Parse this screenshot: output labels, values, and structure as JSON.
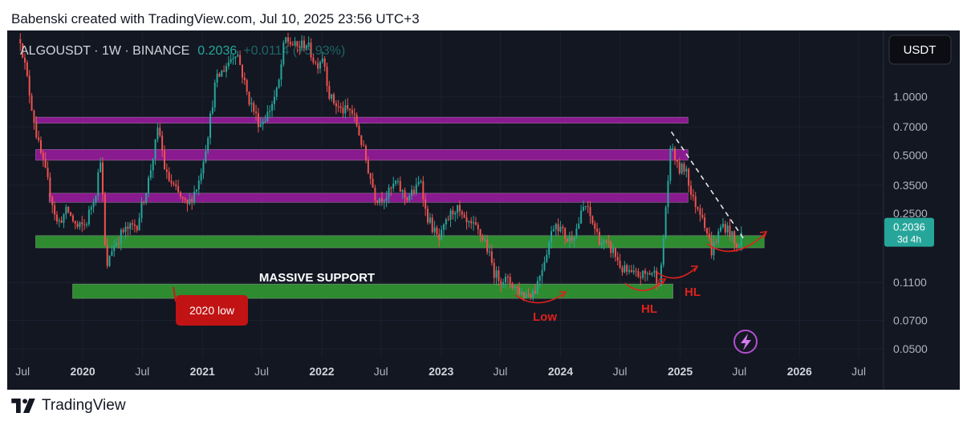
{
  "header": {
    "credit": "Babenski created with TradingView.com, Jul 10, 2025 23:56 UTC+3"
  },
  "footer": {
    "brand": "TradingView"
  },
  "chart_data": {
    "type": "candlestick",
    "symbol": "ALGOUSDT",
    "interval": "1W",
    "exchange": "BINANCE",
    "symbol_line": "ALGOUSDT · 1W · BINANCE",
    "last_price": "0.2036",
    "change_text": "+0.0114 (+5.93%)",
    "currency_button": "USDT",
    "price_badge": {
      "price": "0.2036",
      "countdown": "3d 4h"
    },
    "y_scale": "log",
    "ylim": [
      0.045,
      2.2
    ],
    "x_range": [
      "2019-05-15",
      "2026-09-15"
    ],
    "y_ticks": [
      {
        "label": "1.0000",
        "value": 1.0
      },
      {
        "label": "0.7000",
        "value": 0.7
      },
      {
        "label": "0.5000",
        "value": 0.5
      },
      {
        "label": "0.3500",
        "value": 0.35
      },
      {
        "label": "0.2500",
        "value": 0.25
      },
      {
        "label": "0.1100",
        "value": 0.11
      },
      {
        "label": "0.0700",
        "value": 0.07
      },
      {
        "label": "0.0500",
        "value": 0.05
      }
    ],
    "x_ticks": [
      {
        "label": "Jul",
        "date": "2019-07-01",
        "bold": false
      },
      {
        "label": "2020",
        "date": "2020-01-01",
        "bold": true
      },
      {
        "label": "Jul",
        "date": "2020-07-01",
        "bold": false
      },
      {
        "label": "2021",
        "date": "2021-01-01",
        "bold": true
      },
      {
        "label": "Jul",
        "date": "2021-07-01",
        "bold": false
      },
      {
        "label": "2022",
        "date": "2022-01-01",
        "bold": true
      },
      {
        "label": "Jul",
        "date": "2022-07-01",
        "bold": false
      },
      {
        "label": "2023",
        "date": "2023-01-01",
        "bold": true
      },
      {
        "label": "Jul",
        "date": "2023-07-01",
        "bold": false
      },
      {
        "label": "2024",
        "date": "2024-01-01",
        "bold": true
      },
      {
        "label": "Jul",
        "date": "2024-07-01",
        "bold": false
      },
      {
        "label": "2025",
        "date": "2025-01-01",
        "bold": true
      },
      {
        "label": "Jul",
        "date": "2025-07-01",
        "bold": false
      },
      {
        "label": "2026",
        "date": "2026-01-01",
        "bold": true
      },
      {
        "label": "Jul",
        "date": "2026-07-01",
        "bold": false
      }
    ],
    "price_path": [
      [
        "2019-06-24",
        2.0
      ],
      [
        "2019-07-20",
        1.1
      ],
      [
        "2019-08-15",
        0.6
      ],
      [
        "2019-09-20",
        0.34
      ],
      [
        "2019-10-15",
        0.22
      ],
      [
        "2019-11-15",
        0.26
      ],
      [
        "2019-12-15",
        0.21
      ],
      [
        "2020-01-10",
        0.22
      ],
      [
        "2020-02-10",
        0.33
      ],
      [
        "2020-02-25",
        0.5
      ],
      [
        "2020-03-13",
        0.12
      ],
      [
        "2020-03-25",
        0.16
      ],
      [
        "2020-05-01",
        0.2
      ],
      [
        "2020-06-15",
        0.22
      ],
      [
        "2020-07-20",
        0.37
      ],
      [
        "2020-08-20",
        0.7
      ],
      [
        "2020-09-10",
        0.4
      ],
      [
        "2020-10-15",
        0.32
      ],
      [
        "2020-11-15",
        0.27
      ],
      [
        "2020-12-20",
        0.36
      ],
      [
        "2021-01-15",
        0.6
      ],
      [
        "2021-02-10",
        1.2
      ],
      [
        "2021-03-20",
        1.5
      ],
      [
        "2021-04-15",
        1.75
      ],
      [
        "2021-05-20",
        1.0
      ],
      [
        "2021-06-25",
        0.72
      ],
      [
        "2021-07-20",
        0.82
      ],
      [
        "2021-08-20",
        1.1
      ],
      [
        "2021-09-10",
        2.0
      ],
      [
        "2021-10-15",
        1.8
      ],
      [
        "2021-11-15",
        1.9
      ],
      [
        "2021-12-15",
        1.45
      ],
      [
        "2022-01-05",
        1.65
      ],
      [
        "2022-01-25",
        1.0
      ],
      [
        "2022-03-01",
        0.85
      ],
      [
        "2022-04-01",
        0.85
      ],
      [
        "2022-04-20",
        0.7
      ],
      [
        "2022-05-12",
        0.5
      ],
      [
        "2022-06-15",
        0.3
      ],
      [
        "2022-07-20",
        0.31
      ],
      [
        "2022-08-15",
        0.36
      ],
      [
        "2022-09-15",
        0.3
      ],
      [
        "2022-10-15",
        0.33
      ],
      [
        "2022-11-01",
        0.38
      ],
      [
        "2022-11-15",
        0.25
      ],
      [
        "2022-12-25",
        0.18
      ],
      [
        "2023-01-25",
        0.24
      ],
      [
        "2023-02-15",
        0.27
      ],
      [
        "2023-03-15",
        0.22
      ],
      [
        "2023-04-15",
        0.21
      ],
      [
        "2023-05-15",
        0.18
      ],
      [
        "2023-06-15",
        0.12
      ],
      [
        "2023-08-01",
        0.11
      ],
      [
        "2023-09-10",
        0.095
      ],
      [
        "2023-10-15",
        0.1
      ],
      [
        "2023-11-15",
        0.15
      ],
      [
        "2023-12-15",
        0.23
      ],
      [
        "2024-01-25",
        0.18
      ],
      [
        "2024-02-20",
        0.21
      ],
      [
        "2024-03-15",
        0.28
      ],
      [
        "2024-04-05",
        0.23
      ],
      [
        "2024-05-01",
        0.18
      ],
      [
        "2024-06-10",
        0.16
      ],
      [
        "2024-07-05",
        0.13
      ],
      [
        "2024-08-05",
        0.12
      ],
      [
        "2024-09-10",
        0.12
      ],
      [
        "2024-10-10",
        0.125
      ],
      [
        "2024-11-01",
        0.11
      ],
      [
        "2024-11-20",
        0.3
      ],
      [
        "2024-12-05",
        0.58
      ],
      [
        "2024-12-25",
        0.42
      ],
      [
        "2025-01-20",
        0.43
      ],
      [
        "2025-02-05",
        0.3
      ],
      [
        "2025-03-10",
        0.25
      ],
      [
        "2025-04-07",
        0.16
      ],
      [
        "2025-05-10",
        0.22
      ],
      [
        "2025-06-05",
        0.2
      ],
      [
        "2025-06-22",
        0.16
      ],
      [
        "2025-07-10",
        0.2036
      ]
    ],
    "zones": [
      {
        "name": "resistance-zone-1",
        "color": "purple",
        "x": [
          "2019-08-10",
          "2025-01-25"
        ],
        "y": [
          0.73,
          0.785
        ]
      },
      {
        "name": "resistance-zone-2",
        "color": "purple",
        "x": [
          "2019-08-10",
          "2025-01-25"
        ],
        "y": [
          0.47,
          0.535
        ]
      },
      {
        "name": "resistance-zone-3",
        "color": "purple",
        "x": [
          "2019-09-20",
          "2025-01-25"
        ],
        "y": [
          0.285,
          0.318
        ]
      },
      {
        "name": "support-zone",
        "color": "green",
        "x": [
          "2019-08-10",
          "2025-09-15"
        ],
        "y": [
          0.166,
          0.192
        ]
      },
      {
        "name": "massive-support-zone",
        "color": "green",
        "x": [
          "2019-12-01",
          "2024-12-10"
        ],
        "y": [
          0.091,
          0.108
        ]
      }
    ],
    "trendline": {
      "from": [
        "2024-12-05",
        0.66
      ],
      "to": [
        "2025-07-15",
        0.184
      ]
    },
    "annotations": {
      "massive_support": "MASSIVE SUPPORT",
      "low_2020": "2020 low",
      "low": "Low",
      "hl_1": "HL",
      "hl_2": "HL"
    },
    "colors": {
      "background": "#131722",
      "up": "#26a69a",
      "down": "#ef5350",
      "purple_zone": "#8a1a8f",
      "green_zone": "#2e8b30",
      "annotation": "#e0201c",
      "text": "#b2b5be",
      "badge": "#26a69a"
    }
  }
}
